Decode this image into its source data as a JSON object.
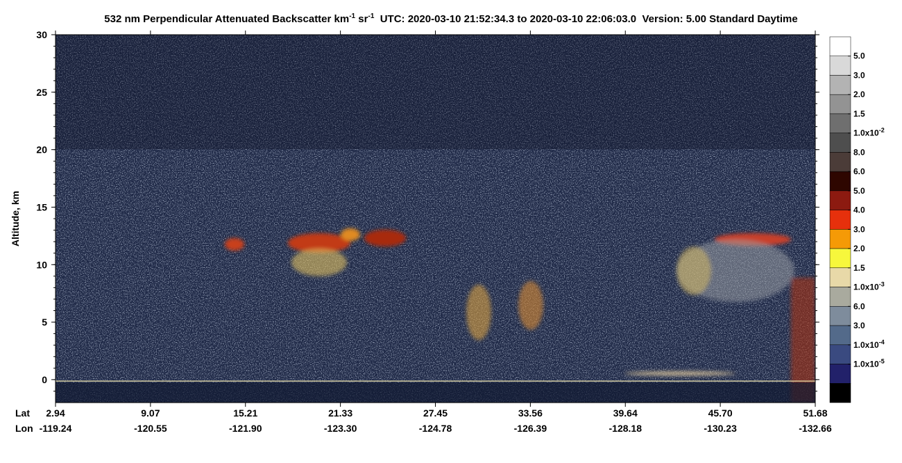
{
  "chart_data": {
    "type": "curtain",
    "title": {
      "parts": [
        "532 nm Perpendicular Attenuated Backscatter km",
        "-1",
        " sr",
        "-1",
        "  UTC: 2020-03-10 21:52:34.3 to 2020-03-10 22:06:03.0  Version: 5.00 Standard Daytime"
      ]
    },
    "y_axis_label": "Altitude, km",
    "ylim": [
      -2,
      30
    ],
    "yticks": [
      0,
      5,
      10,
      15,
      20,
      25,
      30
    ],
    "x_row_labels": [
      "Lat",
      "Lon"
    ],
    "lat": [
      "2.94",
      "9.07",
      "15.21",
      "21.33",
      "27.45",
      "33.56",
      "39.64",
      "45.70",
      "51.68"
    ],
    "lon": [
      "-119.24",
      "-120.55",
      "-121.90",
      "-123.30",
      "-124.78",
      "-126.39",
      "-128.18",
      "-130.23",
      "-132.66"
    ],
    "colorbar": {
      "colors": [
        "#ffffff",
        "#d9d9d9",
        "#b3b3b3",
        "#939393",
        "#6f6f6f",
        "#4e4e4e",
        "#4b3c38",
        "#2e0600",
        "#8c1a10",
        "#e6300c",
        "#f59a06",
        "#f7f73c",
        "#e8d9a8",
        "#a9aa9e",
        "#7e8c9c",
        "#536a8a",
        "#3a4a80",
        "#22216a",
        "#000000"
      ],
      "labels": [
        {
          "text": "5.0"
        },
        {
          "text": "3.0"
        },
        {
          "text": "2.0"
        },
        {
          "text": "1.5"
        },
        {
          "text": "1.0x10",
          "sup": "-2"
        },
        {
          "text": "8.0"
        },
        {
          "text": "6.0"
        },
        {
          "text": "5.0"
        },
        {
          "text": "4.0"
        },
        {
          "text": "3.0"
        },
        {
          "text": "2.0"
        },
        {
          "text": "1.5"
        },
        {
          "text": "1.0x10",
          "sup": "-3"
        },
        {
          "text": "6.0"
        },
        {
          "text": "3.0"
        },
        {
          "text": "1.0x10",
          "sup": "-4"
        },
        {
          "text": "1.0x10",
          "sup": "-5"
        }
      ]
    }
  }
}
